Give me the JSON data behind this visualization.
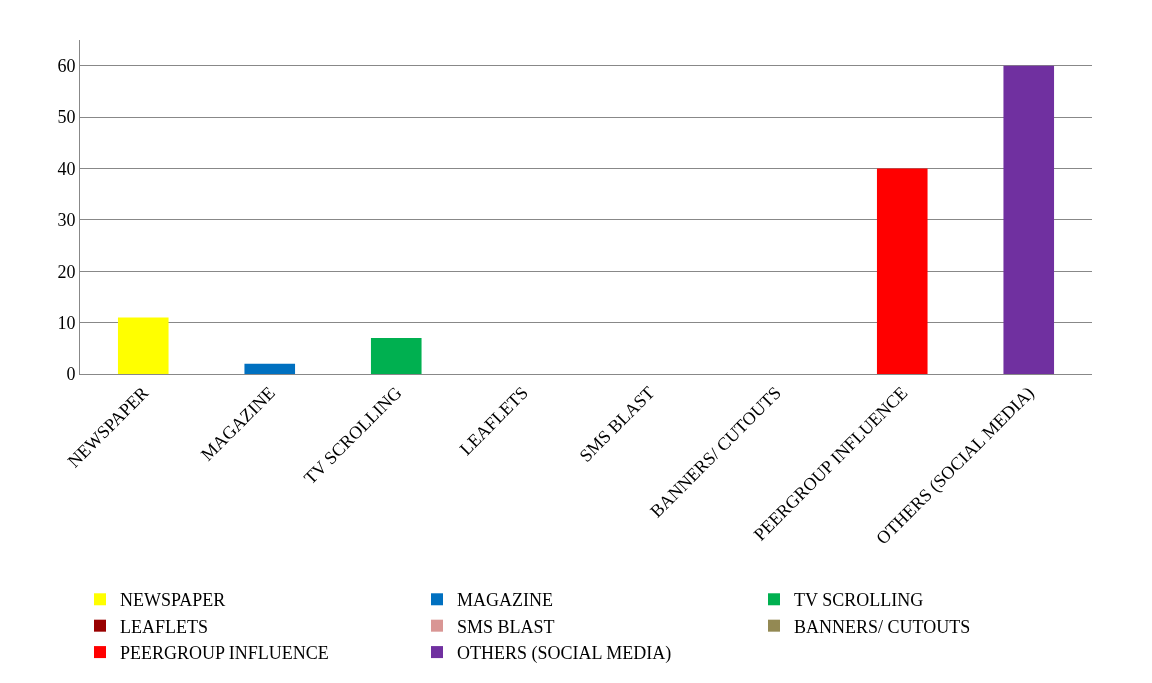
{
  "chart_data": {
    "type": "bar",
    "categories": [
      "NEWSPAPER",
      "MAGAZINE",
      "TV SCROLLING",
      "LEAFLETS",
      "SMS BLAST",
      "BANNERS/ CUTOUTS",
      "PEERGROUP INFLUENCE",
      "OTHERS (SOCIAL MEDIA)"
    ],
    "series": [
      {
        "name": "NEWSPAPER",
        "color": "#ffff00",
        "values": [
          11,
          null,
          null,
          null,
          null,
          null,
          null,
          null
        ]
      },
      {
        "name": "MAGAZINE",
        "color": "#0070c0",
        "values": [
          null,
          2,
          null,
          null,
          null,
          null,
          null,
          null
        ]
      },
      {
        "name": "TV SCROLLING",
        "color": "#00b050",
        "values": [
          null,
          null,
          7,
          null,
          null,
          null,
          null,
          null
        ]
      },
      {
        "name": "LEAFLETS",
        "color": "#990000",
        "values": [
          null,
          null,
          null,
          0,
          null,
          null,
          null,
          null
        ]
      },
      {
        "name": "SMS BLAST",
        "color": "#d99694",
        "values": [
          null,
          null,
          null,
          null,
          0,
          null,
          null,
          null
        ]
      },
      {
        "name": "BANNERS/ CUTOUTS",
        "color": "#938953",
        "values": [
          null,
          null,
          null,
          null,
          null,
          0,
          null,
          null
        ]
      },
      {
        "name": "PEERGROUP INFLUENCE",
        "color": "#ff0000",
        "values": [
          null,
          null,
          null,
          null,
          null,
          null,
          40,
          null
        ]
      },
      {
        "name": "OTHERS (SOCIAL MEDIA)",
        "color": "#7030a0",
        "values": [
          null,
          null,
          null,
          null,
          null,
          null,
          null,
          60
        ]
      }
    ],
    "ylim": [
      0,
      65
    ],
    "yticks": [
      0,
      10,
      20,
      30,
      40,
      50,
      60
    ],
    "grid": "y",
    "legend": "bottom"
  }
}
